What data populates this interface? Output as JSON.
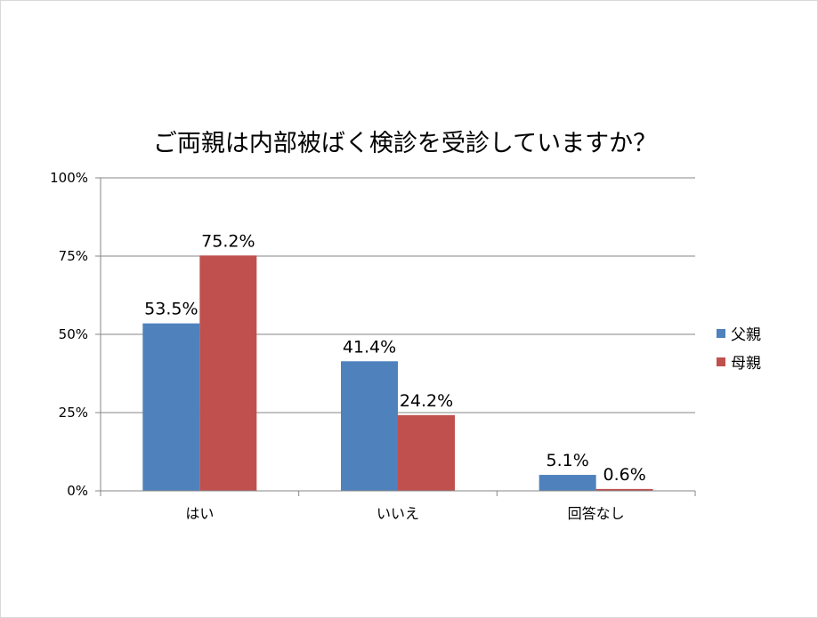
{
  "chart_data": {
    "type": "bar",
    "title": "ご両親は内部被ばく検診を受診していますか？",
    "categories": [
      "はい",
      "いいえ",
      "回答なし"
    ],
    "series": [
      {
        "name": "父親",
        "color": "#4f81bd",
        "values": [
          53.5,
          41.4,
          5.1
        ],
        "labels": [
          "53.5%",
          "41.4%",
          "5.1%"
        ]
      },
      {
        "name": "母親",
        "color": "#c0504d",
        "values": [
          75.2,
          24.2,
          0.6
        ],
        "labels": [
          "75.2%",
          "24.2%",
          "0.6%"
        ]
      }
    ],
    "ylim": [
      0,
      100
    ],
    "yticks": [
      0,
      25,
      50,
      75,
      100
    ],
    "ytick_labels": [
      "0%",
      "25%",
      "50%",
      "75%",
      "100%"
    ],
    "xlabel": "",
    "ylabel": "",
    "grid": true,
    "legend_position": "right"
  }
}
